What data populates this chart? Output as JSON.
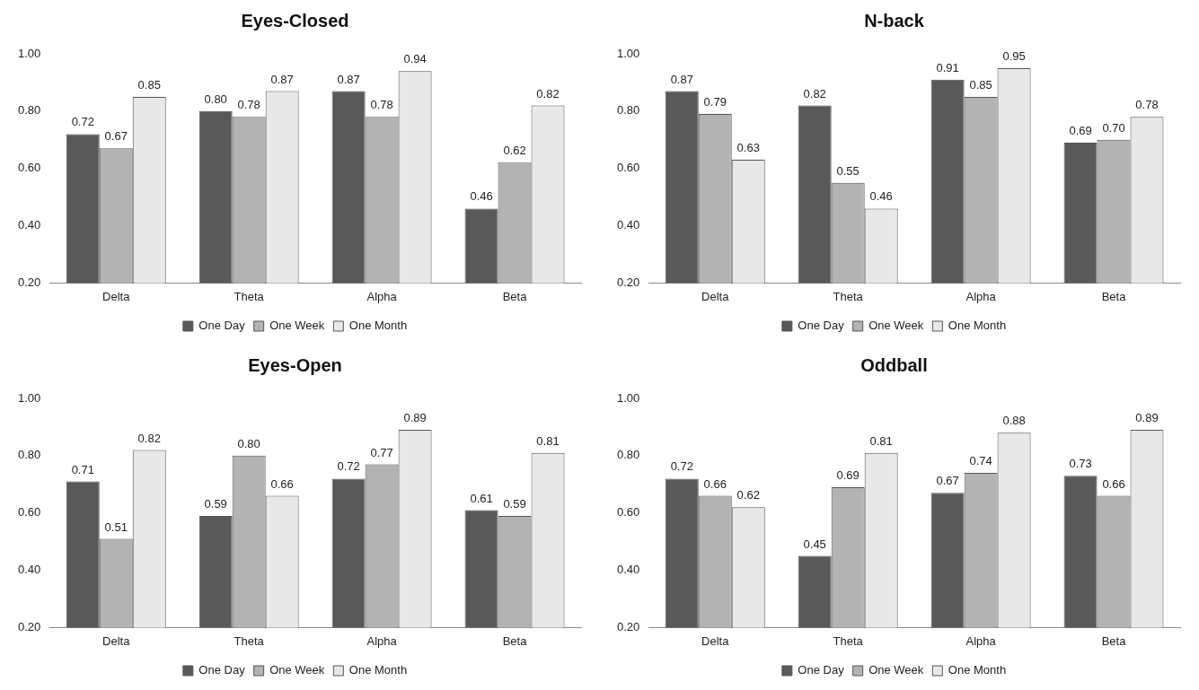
{
  "chart_data": [
    {
      "type": "bar",
      "title": "Eyes-Closed",
      "categories": [
        "Delta",
        "Theta",
        "Alpha",
        "Beta"
      ],
      "ylim": [
        0.2,
        1.0
      ],
      "yticks": [
        {
          "value": 0.2,
          "label": "0.20"
        },
        {
          "value": 0.4,
          "label": "0.40"
        },
        {
          "value": 0.6,
          "label": "0.60"
        },
        {
          "value": 0.8,
          "label": "0.80"
        },
        {
          "value": 1.0,
          "label": "1.00"
        }
      ],
      "grid": false,
      "legend": "bottom",
      "series": [
        {
          "name": "One Day",
          "color": "#595959",
          "values": [
            0.72,
            0.8,
            0.87,
            0.46
          ],
          "value_labels": [
            "0.72",
            "0.80",
            "0.87",
            "0.46"
          ]
        },
        {
          "name": "One Week",
          "color": "#b3b3b3",
          "values": [
            0.67,
            0.78,
            0.78,
            0.62
          ],
          "value_labels": [
            "0.67",
            "0.78",
            "0.78",
            "0.62"
          ]
        },
        {
          "name": "One Month",
          "color": "#e8e8e8",
          "values": [
            0.85,
            0.87,
            0.94,
            0.82
          ],
          "value_labels": [
            "0.85",
            "0.87",
            "0.94",
            "0.82"
          ]
        }
      ]
    },
    {
      "type": "bar",
      "title": "N-back",
      "categories": [
        "Delta",
        "Theta",
        "Alpha",
        "Beta"
      ],
      "ylim": [
        0.2,
        1.0
      ],
      "yticks": [
        {
          "value": 0.2,
          "label": "0.20"
        },
        {
          "value": 0.4,
          "label": "0.40"
        },
        {
          "value": 0.6,
          "label": "0.60"
        },
        {
          "value": 0.8,
          "label": "0.80"
        },
        {
          "value": 1.0,
          "label": "1.00"
        }
      ],
      "grid": false,
      "legend": "bottom",
      "series": [
        {
          "name": "One Day",
          "color": "#595959",
          "values": [
            0.87,
            0.82,
            0.91,
            0.69
          ],
          "value_labels": [
            "0.87",
            "0.82",
            "0.91",
            "0.69"
          ]
        },
        {
          "name": "One Week",
          "color": "#b3b3b3",
          "values": [
            0.79,
            0.55,
            0.85,
            0.7
          ],
          "value_labels": [
            "0.79",
            "0.55",
            "0.85",
            "0.70"
          ]
        },
        {
          "name": "One Month",
          "color": "#e8e8e8",
          "values": [
            0.63,
            0.46,
            0.95,
            0.78
          ],
          "value_labels": [
            "0.63",
            "0.46",
            "0.95",
            "0.78"
          ]
        }
      ]
    },
    {
      "type": "bar",
      "title": "Eyes-Open",
      "categories": [
        "Delta",
        "Theta",
        "Alpha",
        "Beta"
      ],
      "ylim": [
        0.2,
        1.0
      ],
      "yticks": [
        {
          "value": 0.2,
          "label": "0.20"
        },
        {
          "value": 0.4,
          "label": "0.40"
        },
        {
          "value": 0.6,
          "label": "0.60"
        },
        {
          "value": 0.8,
          "label": "0.80"
        },
        {
          "value": 1.0,
          "label": "1.00"
        }
      ],
      "grid": false,
      "legend": "bottom",
      "series": [
        {
          "name": "One Day",
          "color": "#595959",
          "values": [
            0.71,
            0.59,
            0.72,
            0.61
          ],
          "value_labels": [
            "0.71",
            "0.59",
            "0.72",
            "0.61"
          ]
        },
        {
          "name": "One Week",
          "color": "#b3b3b3",
          "values": [
            0.51,
            0.8,
            0.77,
            0.59
          ],
          "value_labels": [
            "0.51",
            "0.80",
            "0.77",
            "0.59"
          ]
        },
        {
          "name": "One Month",
          "color": "#e8e8e8",
          "values": [
            0.82,
            0.66,
            0.89,
            0.81
          ],
          "value_labels": [
            "0.82",
            "0.66",
            "0.89",
            "0.81"
          ]
        }
      ]
    },
    {
      "type": "bar",
      "title": "Oddball",
      "categories": [
        "Delta",
        "Theta",
        "Alpha",
        "Beta"
      ],
      "ylim": [
        0.2,
        1.0
      ],
      "yticks": [
        {
          "value": 0.2,
          "label": "0.20"
        },
        {
          "value": 0.4,
          "label": "0.40"
        },
        {
          "value": 0.6,
          "label": "0.60"
        },
        {
          "value": 0.8,
          "label": "0.80"
        },
        {
          "value": 1.0,
          "label": "1.00"
        }
      ],
      "grid": false,
      "legend": "bottom",
      "series": [
        {
          "name": "One Day",
          "color": "#595959",
          "values": [
            0.72,
            0.45,
            0.67,
            0.73
          ],
          "value_labels": [
            "0.72",
            "0.45",
            "0.67",
            "0.73"
          ]
        },
        {
          "name": "One Week",
          "color": "#b3b3b3",
          "values": [
            0.66,
            0.69,
            0.74,
            0.66
          ],
          "value_labels": [
            "0.66",
            "0.69",
            "0.74",
            "0.66"
          ]
        },
        {
          "name": "One Month",
          "color": "#e8e8e8",
          "values": [
            0.62,
            0.81,
            0.88,
            0.89
          ],
          "value_labels": [
            "0.62",
            "0.81",
            "0.88",
            "0.89"
          ]
        }
      ]
    }
  ]
}
